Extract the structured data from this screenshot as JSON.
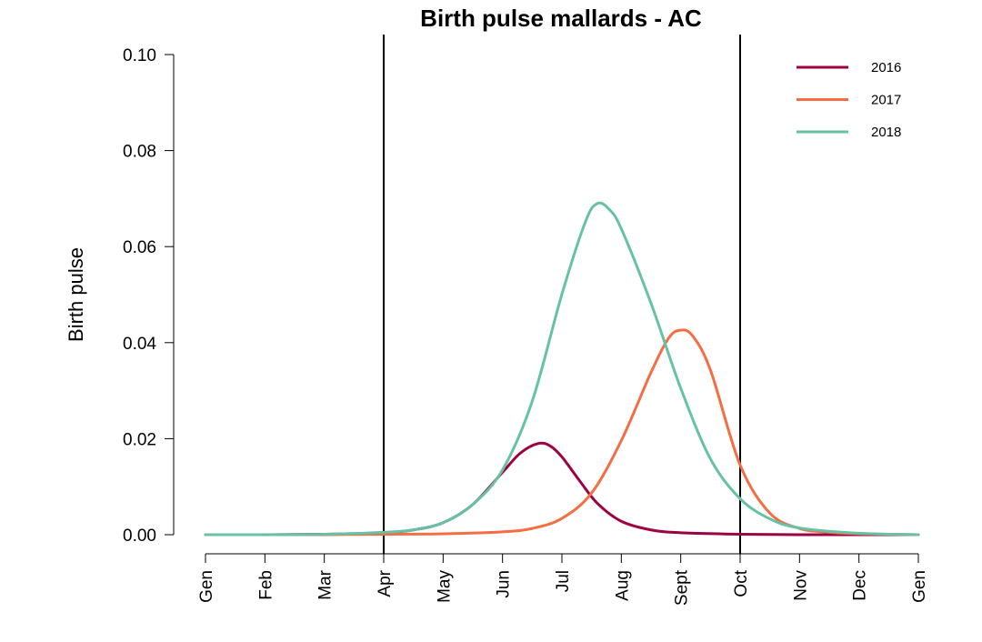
{
  "chart_data": {
    "type": "line",
    "title": "Birth pulse mallards - AC",
    "xlabel": "",
    "ylabel": "Birth pulse",
    "ylim": [
      0,
      0.1
    ],
    "yticks": [
      "0.00",
      "0.02",
      "0.04",
      "0.06",
      "0.08",
      "0.10"
    ],
    "month_labels": [
      "Gen",
      "Feb",
      "Mar",
      "Apr",
      "May",
      "Jun",
      "Jul",
      "Aug",
      "Sept",
      "Oct",
      "Nov",
      "Dec",
      "Gen"
    ],
    "vlines": [
      3,
      9
    ],
    "legend_position": "top-right",
    "grid": false,
    "series": [
      {
        "name": "2016",
        "color": "#9e0142",
        "x": [
          0,
          1,
          2,
          3,
          3.5,
          4,
          4.5,
          5,
          5.3,
          5.6,
          5.8,
          6,
          6.3,
          6.6,
          7,
          7.5,
          8,
          9,
          10,
          11,
          12
        ],
        "y": [
          0.0,
          0.0,
          0.0001,
          0.0004,
          0.001,
          0.0025,
          0.0063,
          0.013,
          0.017,
          0.019,
          0.0185,
          0.0162,
          0.0112,
          0.0065,
          0.0028,
          0.001,
          0.0004,
          0.0001,
          0.0,
          0.0,
          0.0
        ]
      },
      {
        "name": "2017",
        "color": "#f46d43",
        "x": [
          0,
          1,
          2,
          3,
          4,
          5,
          5.5,
          6,
          6.5,
          7,
          7.5,
          7.8,
          8,
          8.2,
          8.5,
          9,
          9.5,
          10,
          10.5,
          11,
          12
        ],
        "y": [
          0.0,
          0.0,
          0.0,
          0.0001,
          0.0002,
          0.0006,
          0.0013,
          0.0034,
          0.0087,
          0.0196,
          0.0338,
          0.041,
          0.0426,
          0.0414,
          0.0343,
          0.0145,
          0.0045,
          0.0013,
          0.0005,
          0.0002,
          0.0
        ]
      },
      {
        "name": "2018",
        "color": "#66c2a5",
        "x": [
          0,
          1,
          2,
          3,
          3.5,
          4,
          4.5,
          5,
          5.5,
          6,
          6.4,
          6.6,
          6.8,
          7,
          7.5,
          8,
          8.5,
          9,
          9.5,
          10,
          11,
          12
        ],
        "y": [
          0.0,
          0.0,
          0.0001,
          0.0005,
          0.001,
          0.0025,
          0.0063,
          0.0135,
          0.0278,
          0.0501,
          0.0653,
          0.069,
          0.0677,
          0.0637,
          0.0482,
          0.0305,
          0.0158,
          0.0075,
          0.0033,
          0.0014,
          0.0003,
          0.0
        ]
      }
    ]
  }
}
